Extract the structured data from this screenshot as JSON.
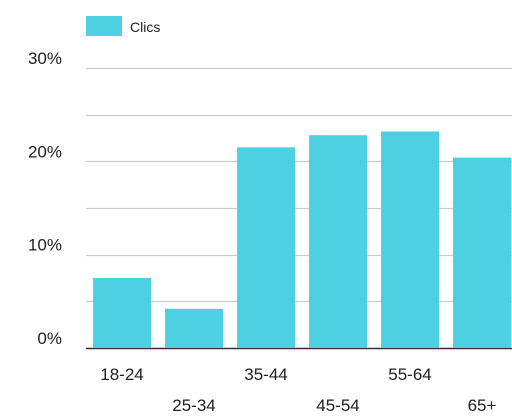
{
  "chart_data": {
    "type": "bar",
    "categories": [
      "18-24",
      "25-34",
      "35-44",
      "45-54",
      "55-64",
      "65+"
    ],
    "series": [
      {
        "name": "Clics",
        "values": [
          7.5,
          4.2,
          21.5,
          22.8,
          23.2,
          20.4
        ],
        "color": "#4dd0e1"
      }
    ],
    "ylim": [
      0,
      30
    ],
    "yticks": [
      {
        "value": 0,
        "label": "0%"
      },
      {
        "value": 10,
        "label": "10%"
      },
      {
        "value": 20,
        "label": "20%"
      },
      {
        "value": 30,
        "label": "30%"
      }
    ],
    "minor_gridlines": [
      5,
      15,
      25
    ],
    "grid": true,
    "legend_position": "top-left",
    "xlabel": "",
    "ylabel": ""
  }
}
